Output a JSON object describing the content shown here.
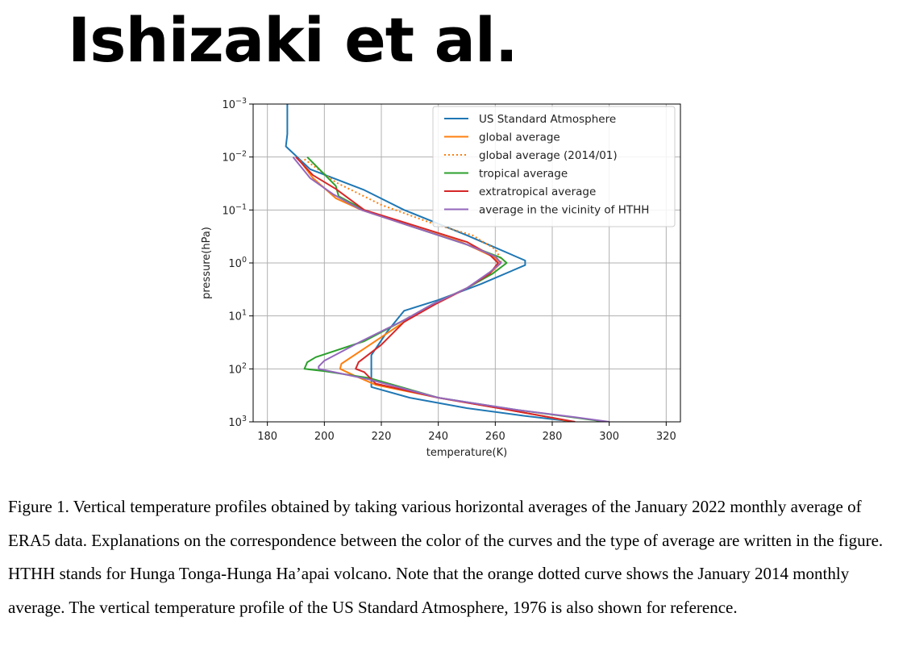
{
  "page": {
    "title": "Ishizaki et al."
  },
  "caption": "Figure 1. Vertical temperature profiles obtained by taking various horizontal averages of the January 2022 monthly average of ERA5 data. Explanations on the correspondence between the color of the curves and the type of average are written in the figure. HTHH stands for Hunga Tonga-Hunga Ha’apai volcano. Note that the orange dotted curve shows the January 2014 monthly average. The vertical temperature profile of the US Standard Atmosphere, 1976 is also shown for reference.",
  "chart_data": {
    "type": "line",
    "xlabel": "temperature(K)",
    "ylabel": "pressure(hPa)",
    "xlim": [
      175,
      325
    ],
    "ylim": [
      1000,
      0.001
    ],
    "yscale": "log",
    "xticks": [
      "180",
      "200",
      "220",
      "240",
      "260",
      "280",
      "300",
      "320"
    ],
    "yticks": [
      {
        "base": "10",
        "exp": "−3"
      },
      {
        "base": "10",
        "exp": "−2"
      },
      {
        "base": "10",
        "exp": "−1"
      },
      {
        "base": "10",
        "exp": "0"
      },
      {
        "base": "10",
        "exp": "1"
      },
      {
        "base": "10",
        "exp": "2"
      },
      {
        "base": "10",
        "exp": "3"
      }
    ],
    "grid": true,
    "legend_position": "top-right",
    "series": [
      {
        "name": "US Standard Atmosphere",
        "color": "#1f77b4",
        "style": "solid",
        "points": [
          [
            187,
            0.001
          ],
          [
            187,
            0.0037
          ],
          [
            186.5,
            0.0063
          ],
          [
            195,
            0.017
          ],
          [
            214,
            0.042
          ],
          [
            228,
            0.1
          ],
          [
            250,
            0.3
          ],
          [
            270.5,
            0.9
          ],
          [
            270.5,
            1.1
          ],
          [
            255,
            2.5
          ],
          [
            240,
            5
          ],
          [
            228,
            8
          ],
          [
            222,
            20
          ],
          [
            216.5,
            55
          ],
          [
            216.5,
            220
          ],
          [
            230,
            350
          ],
          [
            250,
            550
          ],
          [
            270,
            770
          ],
          [
            288,
            1000
          ]
        ]
      },
      {
        "name": "global average",
        "color": "#ff7f0e",
        "style": "solid",
        "points": [
          [
            191,
            0.011
          ],
          [
            196,
            0.025
          ],
          [
            204,
            0.06
          ],
          [
            213,
            0.1
          ],
          [
            230,
            0.2
          ],
          [
            248,
            0.4
          ],
          [
            260,
            0.8
          ],
          [
            262,
            1.0
          ],
          [
            258,
            1.6
          ],
          [
            250,
            3
          ],
          [
            238,
            6
          ],
          [
            228,
            13
          ],
          [
            216,
            35
          ],
          [
            206,
            80
          ],
          [
            205.5,
            100
          ],
          [
            210,
            130
          ],
          [
            218,
            200
          ],
          [
            240,
            350
          ],
          [
            262,
            560
          ],
          [
            278,
            800
          ],
          [
            287,
            1000
          ]
        ]
      },
      {
        "name": "global average (2014/01)",
        "color": "#ff7f0e",
        "style": "dotted",
        "points": [
          [
            193,
            0.011
          ],
          [
            204,
            0.03
          ],
          [
            220,
            0.08
          ],
          [
            238,
            0.18
          ],
          [
            252,
            0.3
          ],
          [
            260,
            0.55
          ],
          [
            262,
            0.85
          ],
          [
            262,
            1.0
          ]
        ]
      },
      {
        "name": "tropical average",
        "color": "#2ca02c",
        "style": "solid",
        "points": [
          [
            194,
            0.01
          ],
          [
            204,
            0.035
          ],
          [
            205,
            0.055
          ],
          [
            214,
            0.1
          ],
          [
            230,
            0.2
          ],
          [
            250,
            0.45
          ],
          [
            262,
            0.8
          ],
          [
            264,
            1.0
          ],
          [
            259,
            1.6
          ],
          [
            250,
            3
          ],
          [
            238,
            6
          ],
          [
            228,
            12
          ],
          [
            214,
            30
          ],
          [
            197,
            60
          ],
          [
            194,
            75
          ],
          [
            193,
            100
          ],
          [
            200,
            110
          ],
          [
            216,
            150
          ],
          [
            240,
            350
          ],
          [
            268,
            600
          ],
          [
            287,
            820
          ],
          [
            299,
            1000
          ]
        ]
      },
      {
        "name": "extratropical average",
        "color": "#d62728",
        "style": "solid",
        "points": [
          [
            190,
            0.01
          ],
          [
            196,
            0.022
          ],
          [
            204,
            0.04
          ],
          [
            214,
            0.1
          ],
          [
            232,
            0.2
          ],
          [
            250,
            0.4
          ],
          [
            258,
            0.7
          ],
          [
            261,
            1.0
          ],
          [
            258,
            1.6
          ],
          [
            250,
            3
          ],
          [
            239,
            6
          ],
          [
            228,
            13
          ],
          [
            220,
            35
          ],
          [
            212,
            75
          ],
          [
            211,
            100
          ],
          [
            214,
            115
          ],
          [
            218,
            190
          ],
          [
            240,
            350
          ],
          [
            262,
            560
          ],
          [
            278,
            800
          ],
          [
            288,
            1000
          ]
        ]
      },
      {
        "name": "average in the vicinity of HTHH",
        "color": "#9467bd",
        "style": "solid",
        "points": [
          [
            189,
            0.01
          ],
          [
            195,
            0.025
          ],
          [
            203,
            0.05
          ],
          [
            213,
            0.1
          ],
          [
            230,
            0.2
          ],
          [
            250,
            0.45
          ],
          [
            260,
            0.75
          ],
          [
            262,
            1.0
          ],
          [
            258,
            1.5
          ],
          [
            250,
            3
          ],
          [
            238,
            6
          ],
          [
            228,
            12
          ],
          [
            213,
            30
          ],
          [
            200,
            70
          ],
          [
            198,
            90
          ],
          [
            198,
            100
          ],
          [
            205,
            120
          ],
          [
            216,
            160
          ],
          [
            240,
            350
          ],
          [
            268,
            600
          ],
          [
            288,
            820
          ],
          [
            300,
            1000
          ]
        ]
      }
    ]
  }
}
